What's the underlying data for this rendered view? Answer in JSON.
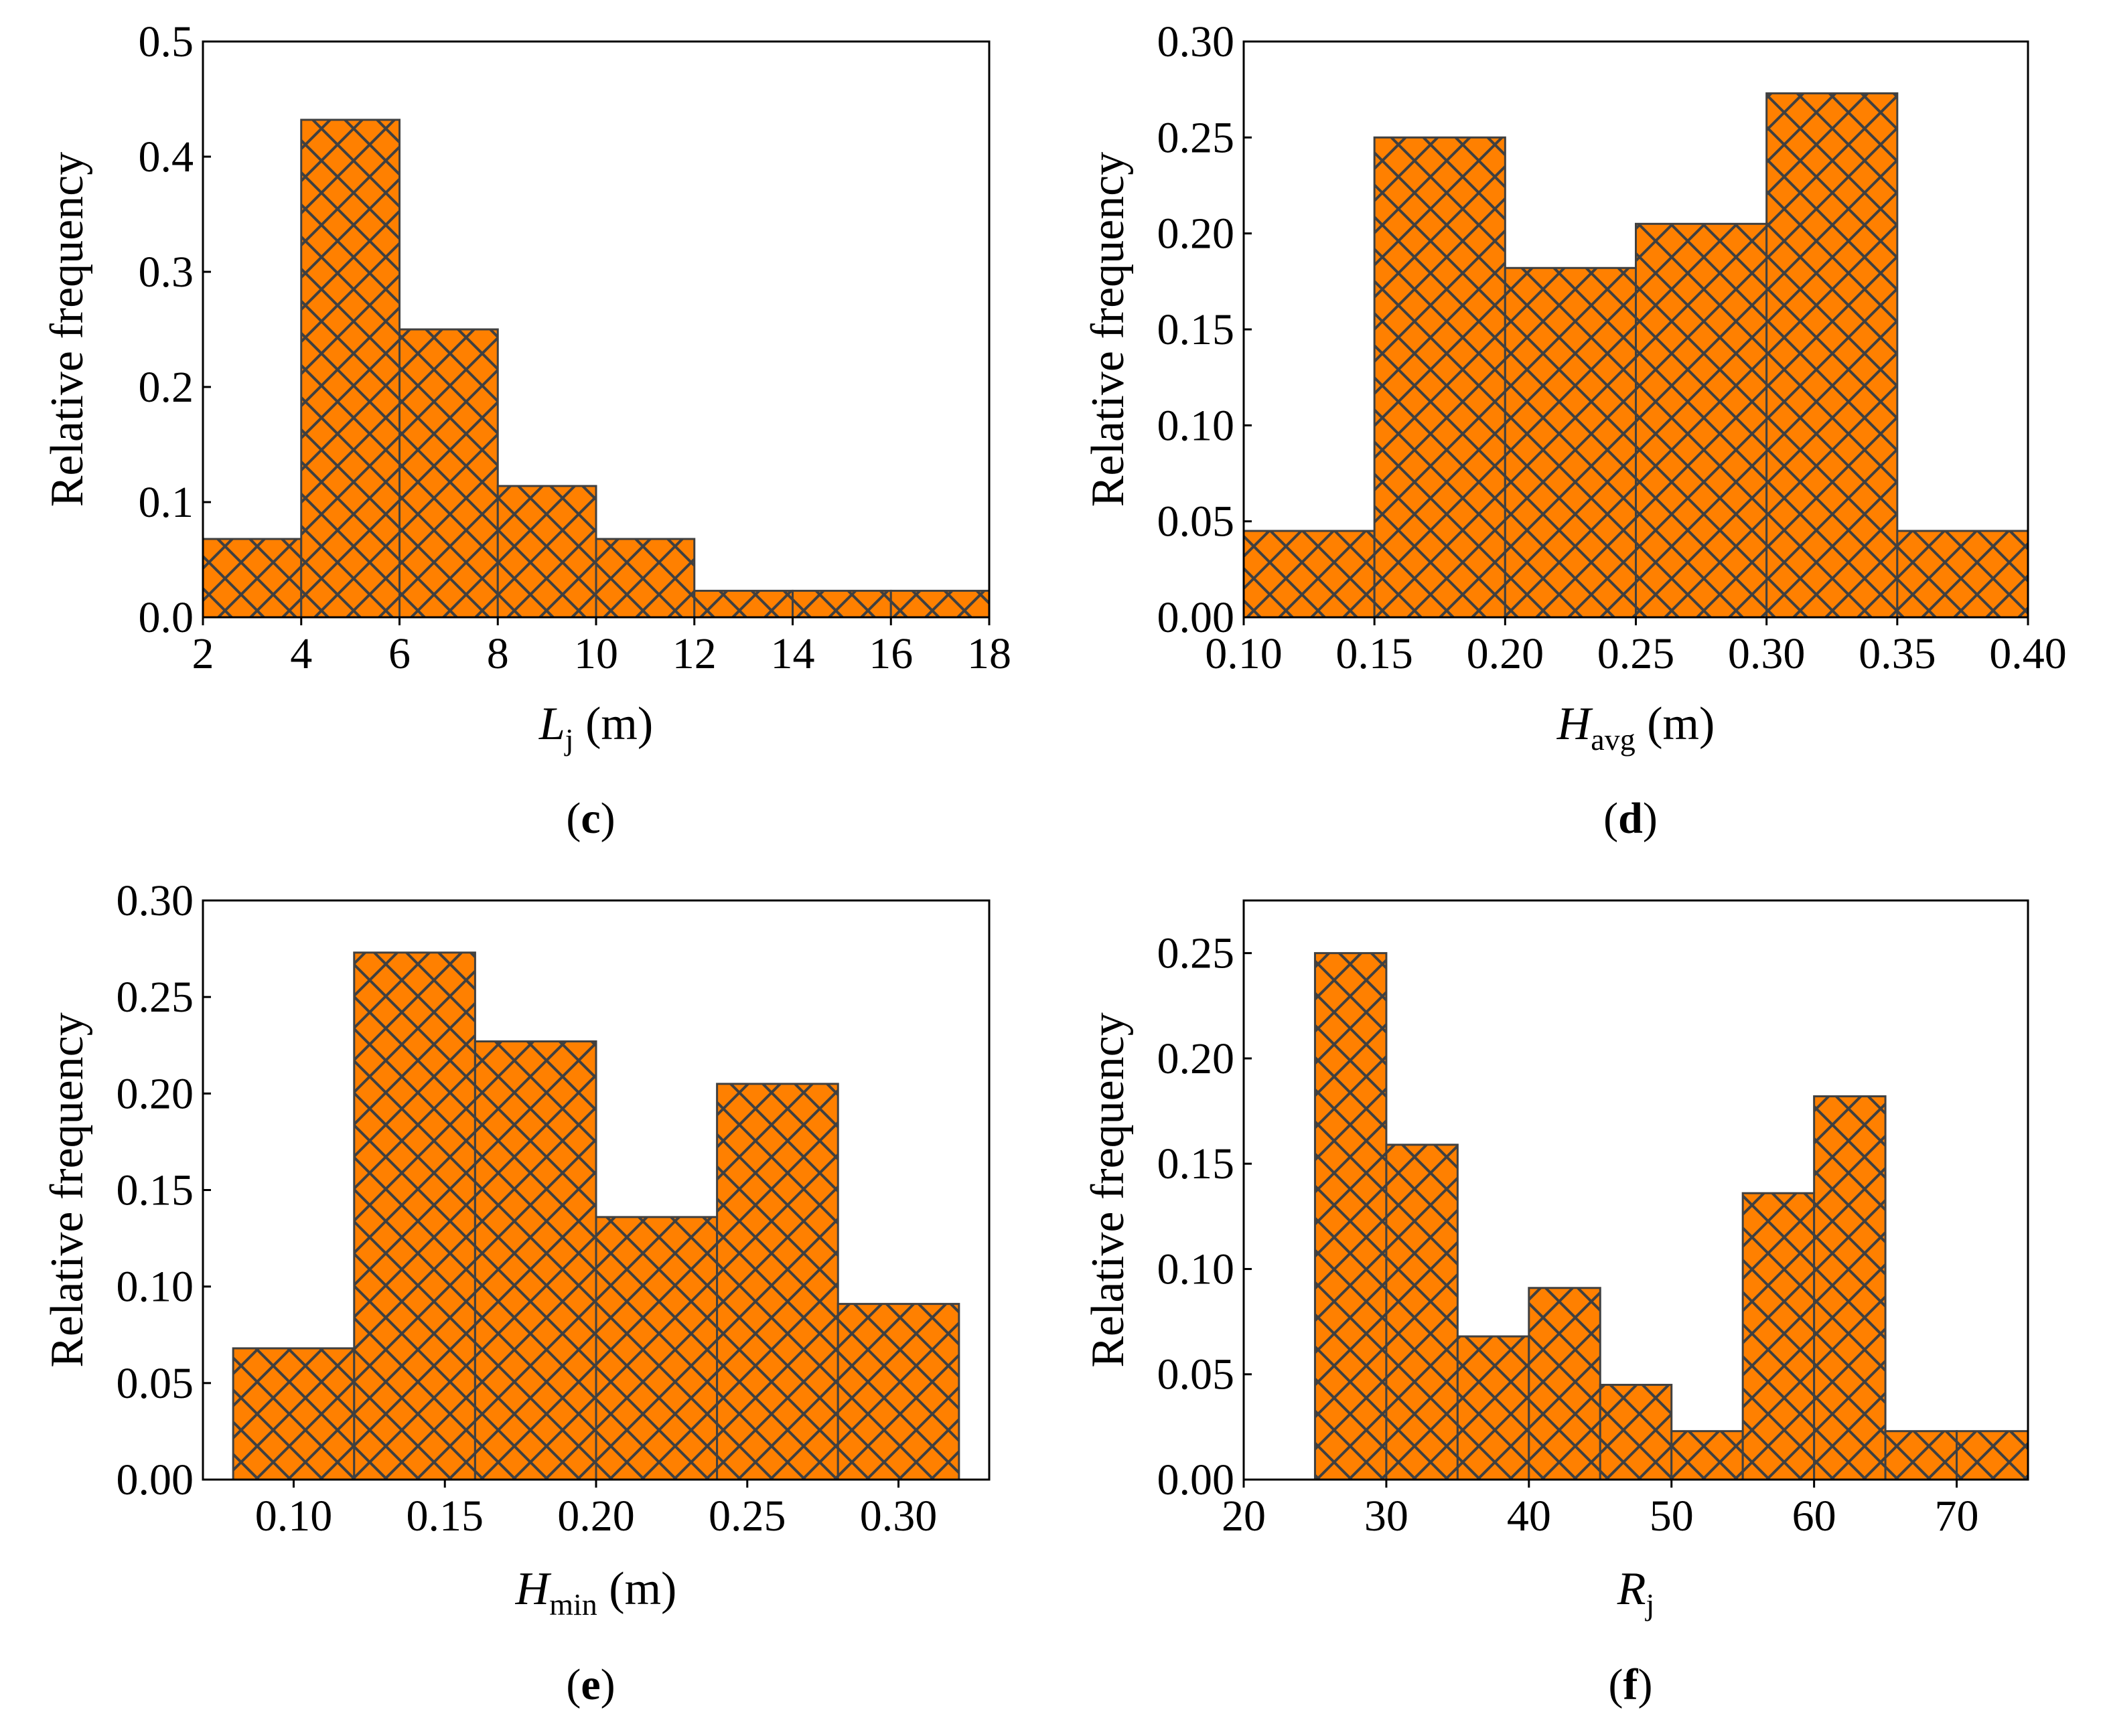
{
  "colors": {
    "bar_fill": "#ff8000",
    "hatch": "#404040"
  },
  "chart_data": [
    {
      "type": "bar",
      "hist_style": "histogram",
      "hatch": "crosshatch",
      "panel": "(c)",
      "panel_letter": "c",
      "xlabel": {
        "main": "L",
        "sub": "j",
        "unit": " (m)"
      },
      "ylabel": "Relative frequency",
      "xlim": [
        2,
        18
      ],
      "ylim": [
        0,
        0.5
      ],
      "xticks": [
        2,
        4,
        6,
        8,
        10,
        12,
        14,
        16,
        18
      ],
      "xtick_labels": [
        "2",
        "4",
        "6",
        "8",
        "10",
        "12",
        "14",
        "16",
        "18"
      ],
      "yticks": [
        0,
        0.1,
        0.2,
        0.3,
        0.4,
        0.5
      ],
      "ytick_labels": [
        "0.0",
        "0.1",
        "0.2",
        "0.3",
        "0.4",
        "0.5"
      ],
      "bin_edges": [
        2,
        4,
        6,
        8,
        10,
        12,
        14,
        16,
        18
      ],
      "values": [
        0.068,
        0.432,
        0.25,
        0.114,
        0.068,
        0.023,
        0.023,
        0.023
      ]
    },
    {
      "type": "bar",
      "hist_style": "histogram",
      "hatch": "crosshatch",
      "panel": "(d)",
      "panel_letter": "d",
      "xlabel": {
        "main": "H",
        "sub": "avg",
        "unit": " (m)"
      },
      "ylabel": "Relative frequency",
      "xlim": [
        0.1,
        0.4
      ],
      "ylim": [
        0,
        0.3
      ],
      "xticks": [
        0.1,
        0.15,
        0.2,
        0.25,
        0.3,
        0.35,
        0.4
      ],
      "xtick_labels": [
        "0.10",
        "0.15",
        "0.20",
        "0.25",
        "0.30",
        "0.35",
        "0.40"
      ],
      "yticks": [
        0,
        0.05,
        0.1,
        0.15,
        0.2,
        0.25,
        0.3
      ],
      "ytick_labels": [
        "0.00",
        "0.05",
        "0.10",
        "0.15",
        "0.20",
        "0.25",
        "0.30"
      ],
      "bin_edges": [
        0.1,
        0.15,
        0.2,
        0.25,
        0.3,
        0.35,
        0.4
      ],
      "values": [
        0.045,
        0.25,
        0.182,
        0.205,
        0.273,
        0.045
      ]
    },
    {
      "type": "bar",
      "hist_style": "histogram",
      "hatch": "crosshatch",
      "panel": "(e)",
      "panel_letter": "e",
      "xlabel": {
        "main": "H",
        "sub": "min",
        "unit": " (m)"
      },
      "ylabel": "Relative frequency",
      "xlim": [
        0.07,
        0.33
      ],
      "ylim": [
        0,
        0.3
      ],
      "xticks": [
        0.1,
        0.15,
        0.2,
        0.25,
        0.3
      ],
      "xtick_labels": [
        "0.10",
        "0.15",
        "0.20",
        "0.25",
        "0.30"
      ],
      "yticks": [
        0,
        0.05,
        0.1,
        0.15,
        0.2,
        0.25,
        0.3
      ],
      "ytick_labels": [
        "0.00",
        "0.05",
        "0.10",
        "0.15",
        "0.20",
        "0.25",
        "0.30"
      ],
      "bin_edges": [
        0.08,
        0.12,
        0.16,
        0.2,
        0.24,
        0.28,
        0.32
      ],
      "values": [
        0.068,
        0.273,
        0.227,
        0.136,
        0.205,
        0.091
      ]
    },
    {
      "type": "bar",
      "hist_style": "histogram",
      "hatch": "crosshatch",
      "panel": "(f)",
      "panel_letter": "f",
      "xlabel": {
        "main": "R",
        "sub": "j",
        "unit": ""
      },
      "ylabel": "Relative frequency",
      "xlim": [
        20,
        75
      ],
      "ylim": [
        0,
        0.275
      ],
      "xticks": [
        20,
        30,
        40,
        50,
        60,
        70
      ],
      "xtick_labels": [
        "20",
        "30",
        "40",
        "50",
        "60",
        "70"
      ],
      "yticks": [
        0,
        0.05,
        0.1,
        0.15,
        0.2,
        0.25
      ],
      "ytick_labels": [
        "0.00",
        "0.05",
        "0.10",
        "0.15",
        "0.20",
        "0.25"
      ],
      "bin_edges": [
        25,
        30,
        35,
        40,
        45,
        50,
        55,
        60,
        65,
        70,
        75
      ],
      "values": [
        0.25,
        0.159,
        0.068,
        0.091,
        0.045,
        0.023,
        0.136,
        0.182,
        0.023,
        0.023
      ]
    }
  ]
}
